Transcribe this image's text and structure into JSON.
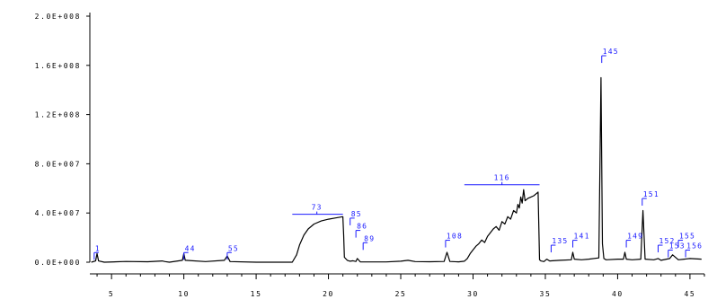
{
  "colors": {
    "trace": "#000000",
    "peak_label": "#1a1aff",
    "axis": "#000000",
    "background": "#ffffff"
  },
  "chart_data": {
    "type": "line",
    "title": "",
    "xlabel": "",
    "ylabel": "",
    "xlim": [
      3.5,
      46
    ],
    "ylim": [
      0,
      200000000
    ],
    "grid": false,
    "x_ticks": [
      5,
      10,
      15,
      20,
      25,
      30,
      35,
      40,
      45
    ],
    "x_tick_labels": [
      "5",
      "10",
      "15",
      "20",
      "25",
      "30",
      "35",
      "40",
      "45"
    ],
    "y_ticks": [
      0,
      40000000,
      80000000,
      120000000,
      160000000,
      200000000
    ],
    "y_tick_labels": [
      "0.0E+000",
      "4.0E+007",
      "8.0E+007",
      "1.2E+008",
      "1.6E+008",
      "2.0E+008"
    ],
    "series": [
      {
        "x": [
          3.6,
          3.9,
          4.0,
          4.1,
          4.5,
          6.0,
          7.5,
          8.5,
          8.7,
          9.0,
          9.9,
          10.0,
          10.1,
          11.5,
          12.8,
          13.0,
          13.2,
          15.0,
          17.0,
          17.5,
          17.8,
          18.0,
          18.3,
          18.6,
          19.0,
          19.5,
          20.0,
          20.5,
          21.0,
          21.05,
          21.1,
          21.3,
          21.5,
          21.7,
          21.9,
          22.0,
          22.2,
          24.0,
          25.0,
          25.5,
          26.0,
          27.0,
          28.0,
          28.2,
          28.4,
          29.0,
          29.4,
          29.6,
          29.8,
          30.0,
          30.2,
          30.4,
          30.6,
          30.8,
          31.0,
          31.2,
          31.4,
          31.6,
          31.8,
          32.0,
          32.2,
          32.4,
          32.6,
          32.8,
          33.0,
          33.1,
          33.2,
          33.3,
          33.4,
          33.5,
          33.6,
          33.8,
          34.0,
          34.2,
          34.4,
          34.5,
          34.6,
          34.7,
          34.9,
          35.1,
          35.3,
          35.5,
          36.0,
          36.8,
          36.9,
          37.0,
          37.5,
          38.0,
          38.7,
          38.85,
          38.95,
          39.05,
          39.2,
          40.0,
          40.4,
          40.5,
          40.6,
          41.0,
          41.6,
          41.75,
          41.9,
          42.5,
          42.8,
          43.0,
          43.6,
          43.8,
          44.2,
          44.6,
          45.0,
          45.8
        ],
        "y": [
          0,
          1000000,
          7000000,
          1000000,
          0,
          600000,
          400000,
          1000000,
          500000,
          0,
          1500000,
          7000000,
          1500000,
          500000,
          1500000,
          5000000,
          500000,
          0,
          0,
          0,
          6000000,
          14000000,
          22000000,
          27000000,
          31000000,
          33500000,
          35000000,
          36000000,
          37000000,
          22000000,
          4000000,
          1500000,
          800000,
          1200000,
          600000,
          3000000,
          300000,
          200000,
          800000,
          1500000,
          500000,
          400000,
          600000,
          8000000,
          600000,
          300000,
          800000,
          3000000,
          7000000,
          10000000,
          13000000,
          15000000,
          18000000,
          16000000,
          21000000,
          24000000,
          27000000,
          29000000,
          26000000,
          33000000,
          31000000,
          37000000,
          35000000,
          42000000,
          40000000,
          47000000,
          44000000,
          53000000,
          48000000,
          59000000,
          50000000,
          52000000,
          53000000,
          54000000,
          56000000,
          57000000,
          2000000,
          1000000,
          500000,
          2500000,
          1000000,
          1200000,
          1500000,
          2000000,
          8000000,
          2500000,
          2000000,
          2500000,
          3500000,
          150000000,
          15000000,
          3000000,
          2000000,
          2500000,
          2500000,
          8000000,
          2500000,
          2000000,
          2500000,
          42000000,
          2500000,
          2000000,
          3000000,
          1500000,
          3000000,
          6000000,
          2000000,
          2500000,
          3000000,
          2500000
        ]
      }
    ],
    "peak_labels": [
      {
        "label": "1",
        "x": 3.8,
        "y": 2000000
      },
      {
        "label": "44",
        "x": 10.0,
        "y": 2000000
      },
      {
        "label": "55",
        "x": 13.0,
        "y": 2000000
      },
      {
        "label": "73",
        "x": 19.2,
        "y": 39000000,
        "range": [
          17.5,
          21.0
        ]
      },
      {
        "label": "85",
        "x": 21.5,
        "y": 30000000
      },
      {
        "label": "86",
        "x": 21.9,
        "y": 20000000
      },
      {
        "label": "89",
        "x": 22.4,
        "y": 10000000
      },
      {
        "label": "108",
        "x": 28.1,
        "y": 12000000
      },
      {
        "label": "116",
        "x": 32.0,
        "y": 63000000,
        "range": [
          29.4,
          34.6
        ]
      },
      {
        "label": "135",
        "x": 35.4,
        "y": 8000000
      },
      {
        "label": "141",
        "x": 36.9,
        "y": 12000000
      },
      {
        "label": "145",
        "x": 38.9,
        "y": 162000000
      },
      {
        "label": "149",
        "x": 40.6,
        "y": 12000000
      },
      {
        "label": "151",
        "x": 41.7,
        "y": 46000000
      },
      {
        "label": "152",
        "x": 42.8,
        "y": 8000000
      },
      {
        "label": "153",
        "x": 43.5,
        "y": 4000000
      },
      {
        "label": "155",
        "x": 44.2,
        "y": 12000000
      },
      {
        "label": "156",
        "x": 44.7,
        "y": 4000000
      }
    ]
  }
}
